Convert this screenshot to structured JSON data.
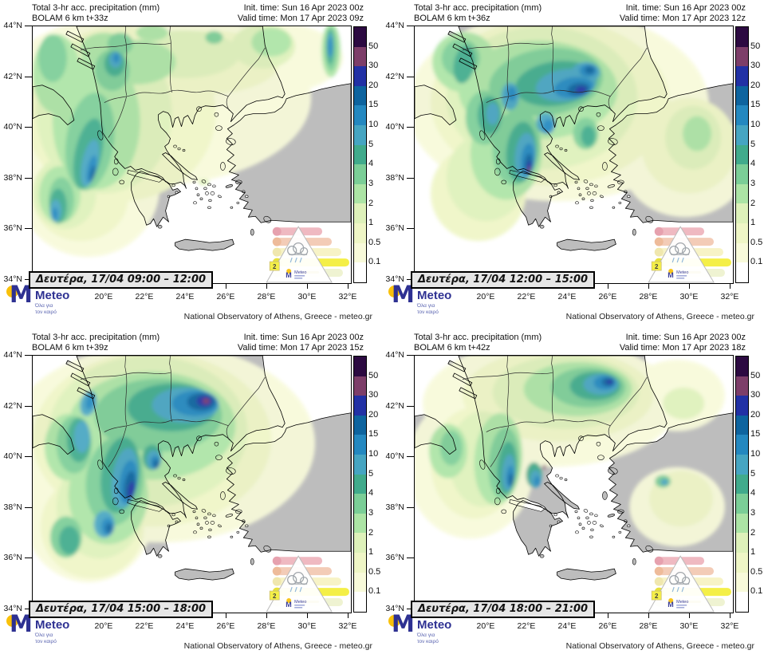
{
  "shared": {
    "title": "Total 3-hr acc. precipitation (mm)",
    "init": "Init. time: Sun 16 Apr 2023 00z",
    "credit": "National Observatory of Athens, Greece - meteo.gr"
  },
  "panels": [
    {
      "bolam": "BOLAM 6 km t+33z",
      "valid": "Valid time: Mon 17 Apr 2023 09z",
      "period": "Δευτέρα, 17/04 09:00 – 12:00",
      "blobs": [
        [
          150,
          90,
          200,
          110,
          0,
          0
        ],
        [
          70,
          200,
          90,
          90,
          0,
          0
        ],
        [
          300,
          40,
          90,
          45,
          0,
          0
        ],
        [
          110,
          110,
          120,
          110,
          0,
          1
        ],
        [
          220,
          45,
          90,
          40,
          0,
          1
        ],
        [
          60,
          215,
          60,
          55,
          0,
          1
        ],
        [
          90,
          110,
          85,
          100,
          0,
          2
        ],
        [
          190,
          35,
          70,
          30,
          0,
          2
        ],
        [
          40,
          210,
          40,
          45,
          0,
          2
        ],
        [
          290,
          25,
          40,
          28,
          0,
          2
        ],
        [
          215,
          196,
          7,
          4,
          0,
          2
        ],
        [
          80,
          120,
          55,
          85,
          0,
          3
        ],
        [
          130,
          45,
          50,
          28,
          0,
          3
        ],
        [
          300,
          20,
          25,
          18,
          0,
          3
        ],
        [
          34,
          212,
          26,
          36,
          0,
          3
        ],
        [
          90,
          30,
          30,
          22,
          0,
          3
        ],
        [
          375,
          30,
          12,
          34,
          0,
          3
        ],
        [
          30,
          60,
          30,
          50,
          0,
          3
        ],
        [
          150,
          8,
          20,
          10,
          0,
          3
        ],
        [
          72,
          145,
          30,
          62,
          8,
          4
        ],
        [
          100,
          55,
          22,
          26,
          0,
          4
        ],
        [
          36,
          218,
          16,
          28,
          0,
          4
        ],
        [
          110,
          22,
          16,
          14,
          0,
          4
        ],
        [
          375,
          28,
          8,
          28,
          0,
          4
        ],
        [
          25,
          40,
          18,
          30,
          0,
          4
        ],
        [
          228,
          14,
          11,
          8,
          0,
          4
        ],
        [
          70,
          160,
          17,
          45,
          12,
          5
        ],
        [
          103,
          47,
          13,
          16,
          0,
          5
        ],
        [
          32,
          226,
          11,
          22,
          0,
          5
        ],
        [
          374,
          26,
          5,
          22,
          0,
          5
        ],
        [
          72,
          172,
          10,
          30,
          12,
          6
        ],
        [
          104,
          42,
          8,
          10,
          0,
          6
        ],
        [
          29,
          232,
          7,
          14,
          0,
          6
        ],
        [
          374,
          24,
          3.5,
          16,
          0,
          6
        ],
        [
          74,
          180,
          5.5,
          18,
          12,
          7
        ],
        [
          28,
          236,
          4,
          8,
          0,
          7
        ],
        [
          105,
          40,
          4,
          6,
          0,
          7
        ],
        [
          374,
          26,
          3,
          12,
          0,
          7
        ],
        [
          75,
          185,
          3,
          10,
          12,
          8
        ]
      ]
    },
    {
      "bolam": "BOLAM 6 km t+36z",
      "valid": "Valid time: Mon 17 Apr 2023 12z",
      "period": "Δευτέρα, 17/04 12:00 – 15:00",
      "blobs": [
        [
          180,
          100,
          190,
          120,
          0,
          0
        ],
        [
          340,
          170,
          80,
          70,
          0,
          0
        ],
        [
          170,
          95,
          150,
          105,
          0,
          1
        ],
        [
          345,
          150,
          60,
          60,
          0,
          1
        ],
        [
          80,
          210,
          60,
          60,
          0,
          1
        ],
        [
          160,
          90,
          120,
          90,
          0,
          2
        ],
        [
          90,
          190,
          50,
          55,
          0,
          2
        ],
        [
          350,
          140,
          35,
          40,
          0,
          2
        ],
        [
          155,
          80,
          100,
          62,
          0,
          3
        ],
        [
          115,
          160,
          45,
          58,
          0,
          3
        ],
        [
          62,
          45,
          40,
          38,
          0,
          3
        ],
        [
          355,
          135,
          18,
          22,
          0,
          3
        ],
        [
          165,
          70,
          72,
          42,
          -8,
          4
        ],
        [
          128,
          152,
          30,
          48,
          5,
          4
        ],
        [
          88,
          115,
          24,
          34,
          0,
          4
        ],
        [
          58,
          40,
          24,
          24,
          0,
          4
        ],
        [
          215,
          135,
          16,
          20,
          0,
          4
        ],
        [
          178,
          72,
          52,
          28,
          -8,
          5
        ],
        [
          134,
          158,
          19,
          38,
          5,
          5
        ],
        [
          94,
          112,
          15,
          24,
          0,
          5
        ],
        [
          62,
          48,
          13,
          24,
          10,
          5
        ],
        [
          218,
          138,
          9,
          13,
          0,
          5
        ],
        [
          190,
          74,
          38,
          20,
          -8,
          6
        ],
        [
          139,
          163,
          13,
          29,
          5,
          6
        ],
        [
          120,
          88,
          11,
          17,
          0,
          6
        ],
        [
          215,
          58,
          18,
          13,
          0,
          6
        ],
        [
          165,
          122,
          12,
          13,
          0,
          6
        ],
        [
          98,
          110,
          8,
          14,
          0,
          6
        ],
        [
          200,
          77,
          25,
          13,
          -8,
          7
        ],
        [
          142,
          168,
          8.5,
          21,
          5,
          7
        ],
        [
          218,
          56,
          11,
          8,
          0,
          7
        ],
        [
          168,
          126,
          7,
          9,
          0,
          7
        ],
        [
          122,
          85,
          6,
          9,
          0,
          7
        ],
        [
          206,
          79,
          14,
          8,
          -8,
          8
        ],
        [
          143,
          173,
          5,
          13,
          5,
          8
        ],
        [
          220,
          55,
          6,
          5,
          0,
          8
        ],
        [
          209,
          80,
          7,
          4.5,
          -8,
          9
        ],
        [
          144,
          177,
          3,
          8,
          5,
          9
        ],
        [
          144,
          180,
          1.6,
          4,
          5,
          10
        ]
      ]
    },
    {
      "bolam": "BOLAM 6 km t+39z",
      "valid": "Valid time: Mon 17 Apr 2023 15z",
      "period": "Δευτέρα, 17/04 15:00 – 18:00",
      "blobs": [
        [
          160,
          110,
          195,
          125,
          0,
          0
        ],
        [
          70,
          190,
          85,
          95,
          0,
          0
        ],
        [
          150,
          105,
          150,
          110,
          0,
          1
        ],
        [
          75,
          215,
          65,
          65,
          0,
          1
        ],
        [
          145,
          95,
          125,
          95,
          0,
          2
        ],
        [
          85,
          190,
          55,
          65,
          0,
          2
        ],
        [
          150,
          88,
          105,
          68,
          0,
          3
        ],
        [
          95,
          175,
          50,
          62,
          0,
          3
        ],
        [
          45,
          115,
          30,
          42,
          0,
          3
        ],
        [
          158,
          75,
          80,
          46,
          0,
          4
        ],
        [
          103,
          158,
          36,
          56,
          6,
          4
        ],
        [
          52,
          112,
          22,
          36,
          0,
          4
        ],
        [
          42,
          228,
          20,
          26,
          0,
          4
        ],
        [
          175,
          65,
          56,
          30,
          0,
          5
        ],
        [
          110,
          150,
          24,
          48,
          8,
          5
        ],
        [
          58,
          106,
          15,
          28,
          0,
          5
        ],
        [
          46,
          232,
          13,
          18,
          0,
          5
        ],
        [
          150,
          128,
          12,
          16,
          0,
          5
        ],
        [
          192,
          62,
          42,
          22,
          0,
          6
        ],
        [
          116,
          154,
          16,
          38,
          8,
          6
        ],
        [
          62,
          102,
          10,
          20,
          0,
          6
        ],
        [
          90,
          212,
          13,
          17,
          0,
          6
        ],
        [
          152,
          131,
          9,
          12,
          0,
          6
        ],
        [
          70,
          60,
          10,
          16,
          14,
          6
        ],
        [
          204,
          60,
          29,
          16,
          0,
          7
        ],
        [
          120,
          159,
          11,
          28,
          8,
          7
        ],
        [
          94,
          215,
          8,
          11,
          0,
          7
        ],
        [
          154,
          134,
          6,
          8.5,
          0,
          7
        ],
        [
          72,
          58,
          5,
          10,
          14,
          7
        ],
        [
          212,
          58,
          18,
          11,
          0,
          8
        ],
        [
          122,
          164,
          7,
          19,
          8,
          8
        ],
        [
          155,
          136,
          3.5,
          5.5,
          0,
          8
        ],
        [
          96,
          217,
          4.5,
          6.5,
          0,
          8
        ],
        [
          216,
          57,
          10,
          7,
          0,
          9
        ],
        [
          124,
          169,
          4,
          11,
          8,
          9
        ],
        [
          218,
          57,
          4.5,
          3.5,
          0,
          10
        ]
      ]
    },
    {
      "bolam": "BOLAM 6 km t+42z",
      "valid": "Valid time: Mon 17 Apr 2023 18z",
      "period": "Δευτέρα, 17/04 18:00 – 21:00",
      "blobs": [
        [
          170,
          60,
          160,
          80,
          0,
          0
        ],
        [
          70,
          140,
          80,
          90,
          0,
          0
        ],
        [
          330,
          190,
          60,
          50,
          0,
          0
        ],
        [
          330,
          50,
          60,
          45,
          0,
          0
        ],
        [
          180,
          50,
          120,
          58,
          0,
          1
        ],
        [
          75,
          135,
          55,
          70,
          0,
          1
        ],
        [
          335,
          180,
          40,
          35,
          0,
          1
        ],
        [
          190,
          46,
          92,
          46,
          0,
          2
        ],
        [
          85,
          130,
          42,
          60,
          0,
          2
        ],
        [
          338,
          60,
          26,
          20,
          0,
          2
        ],
        [
          205,
          42,
          68,
          34,
          0,
          3
        ],
        [
          105,
          130,
          30,
          58,
          4,
          3
        ],
        [
          42,
          120,
          24,
          34,
          0,
          3
        ],
        [
          218,
          40,
          47,
          25,
          0,
          4
        ],
        [
          112,
          135,
          19,
          45,
          4,
          4
        ],
        [
          312,
          158,
          10,
          8,
          0,
          4
        ],
        [
          46,
          116,
          14,
          22,
          0,
          4
        ],
        [
          227,
          38,
          32,
          18,
          0,
          5
        ],
        [
          116,
          141,
          12,
          33,
          4,
          5
        ],
        [
          150,
          150,
          10,
          16,
          0,
          5
        ],
        [
          234,
          36,
          22,
          13,
          0,
          6
        ],
        [
          118,
          147,
          8,
          23,
          4,
          6
        ],
        [
          152,
          155,
          7,
          11,
          0,
          6
        ],
        [
          314,
          159,
          5,
          4,
          0,
          6
        ],
        [
          239,
          34,
          14,
          9,
          0,
          7
        ],
        [
          120,
          152,
          5,
          14,
          4,
          7
        ],
        [
          154,
          158,
          4,
          6.5,
          0,
          7
        ],
        [
          243,
          33,
          8,
          5.5,
          0,
          8
        ],
        [
          121,
          156,
          3,
          8,
          0,
          8
        ],
        [
          245,
          33,
          4,
          3,
          0,
          9
        ],
        [
          163,
          140,
          2,
          3,
          0,
          10
        ]
      ]
    }
  ],
  "axes": {
    "lats": [
      "44°N",
      "42°N",
      "40°N",
      "38°N",
      "36°N",
      "34°N"
    ],
    "lons": [
      "20°E",
      "22°E",
      "24°E",
      "26°E",
      "28°E",
      "30°E",
      "32°E"
    ]
  },
  "colorbar": {
    "labels": [
      "50",
      "30",
      "20",
      "15",
      "10",
      "5",
      "4",
      "3",
      "2",
      "1",
      "0.5",
      "0.1"
    ],
    "colors": [
      "#2c0a41",
      "#7d3e69",
      "#2231a5",
      "#0e649f",
      "#2488c0",
      "#46a5c2",
      "#41ab8c",
      "#7bce97",
      "#ace4a5",
      "#def1ba",
      "#eff6c6",
      "#f8fada",
      "#ffffff"
    ]
  },
  "palette": [
    "#f8fada",
    "#eff6c6",
    "#def1ba",
    "#ace4a5",
    "#7bce97",
    "#41ab8c",
    "#46a5c2",
    "#2488c0",
    "#0e649f",
    "#2231a5",
    "#7d3e69",
    "#2c0a41"
  ],
  "map_colors": {
    "sea": "#ffffff",
    "land": "#bdbdbd",
    "coast": "#000000"
  },
  "logo": {
    "brand": "Meteo",
    "tagline1": "Όλα για",
    "tagline2": "τον καιρό",
    "blue": "#2e3192",
    "yellow": "#f9c10a"
  },
  "watermark": {
    "level": "2"
  }
}
